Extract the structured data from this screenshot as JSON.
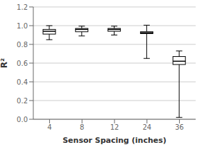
{
  "chart_data": {
    "type": "box",
    "categories": [
      "4",
      "8",
      "12",
      "24",
      "36"
    ],
    "boxes": [
      {
        "q1": 0.91,
        "median": 0.94,
        "q3": 0.96,
        "whislo": 0.85,
        "whishi": 1.0
      },
      {
        "q1": 0.935,
        "median": 0.96,
        "q3": 0.97,
        "whislo": 0.89,
        "whishi": 0.995
      },
      {
        "q1": 0.94,
        "median": 0.96,
        "q3": 0.97,
        "whislo": 0.9,
        "whishi": 0.995
      },
      {
        "q1": 0.915,
        "median": 0.925,
        "q3": 0.935,
        "whislo": 0.65,
        "whishi": 1.005
      },
      {
        "q1": 0.585,
        "median": 0.62,
        "q3": 0.67,
        "whislo": 0.02,
        "whishi": 0.73
      }
    ],
    "xlabel": "Sensor Spacing (inches)",
    "ylabel": "R²",
    "ylim": [
      0.0,
      1.2
    ],
    "yticks": [
      {
        "value": 0,
        "label": "0.0"
      },
      0.2,
      0.4,
      0.6,
      0.8,
      {
        "value": 1,
        "label": "1.0"
      },
      1.2
    ],
    "color": "black",
    "grid": true
  }
}
